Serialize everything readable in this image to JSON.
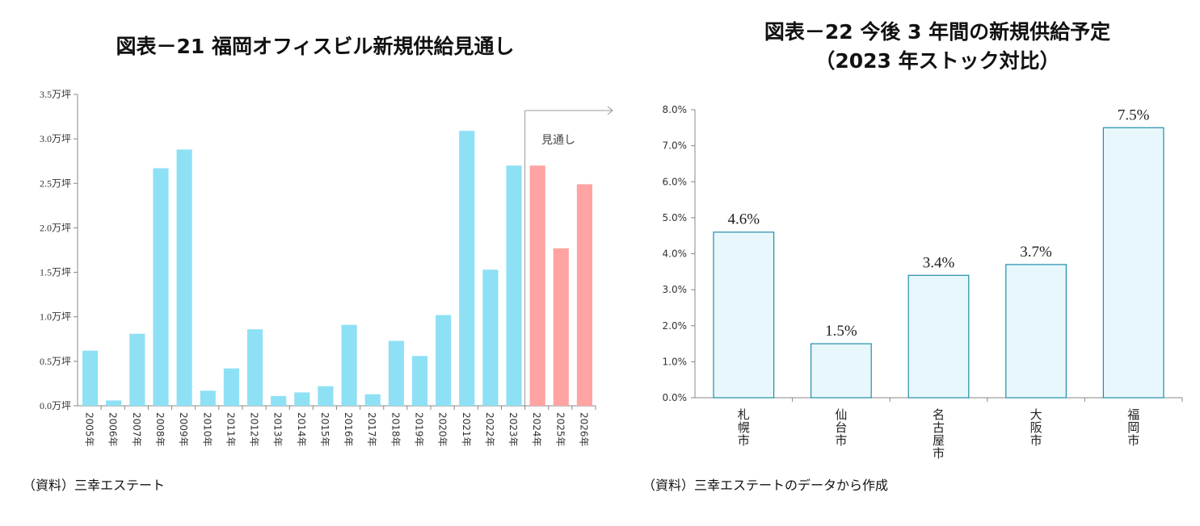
{
  "chart_data": [
    {
      "type": "bar",
      "title": "図表－21 福岡オフィスビル新規供給見通し",
      "categories": [
        "2005年",
        "2006年",
        "2007年",
        "2008年",
        "2009年",
        "2010年",
        "2011年",
        "2012年",
        "2013年",
        "2014年",
        "2015年",
        "2016年",
        "2017年",
        "2018年",
        "2019年",
        "2020年",
        "2021年",
        "2022年",
        "2023年",
        "2024年",
        "2025年",
        "2026年"
      ],
      "values": [
        0.62,
        0.06,
        0.81,
        2.67,
        2.88,
        0.17,
        0.42,
        0.86,
        0.11,
        0.15,
        0.22,
        0.91,
        0.13,
        0.73,
        0.56,
        1.02,
        3.09,
        1.53,
        2.7,
        2.7,
        1.77,
        2.49
      ],
      "forecast_from": "2024年",
      "annotation": "見通し",
      "yticks": [
        "0.0万坪",
        "0.5万坪",
        "1.0万坪",
        "1.5万坪",
        "2.0万坪",
        "2.5万坪",
        "3.0万坪",
        "3.5万坪"
      ],
      "ylim": [
        0,
        3.5
      ],
      "colors": {
        "actual": "#8ee0f5",
        "forecast": "#ffa3a3"
      },
      "source": "（資料）三幸エステート"
    },
    {
      "type": "bar",
      "title": "図表－22 今後 3 年間の新規供給予定",
      "subtitle": "（2023 年ストック対比）",
      "categories": [
        "札幌市",
        "仙台市",
        "名古屋市",
        "大阪市",
        "福岡市"
      ],
      "values": [
        4.6,
        1.5,
        3.4,
        3.7,
        7.5
      ],
      "data_labels": [
        "4.6%",
        "1.5%",
        "3.4%",
        "3.7%",
        "7.5%"
      ],
      "yticks": [
        "0.0%",
        "1.0%",
        "2.0%",
        "3.0%",
        "4.0%",
        "5.0%",
        "6.0%",
        "7.0%",
        "8.0%"
      ],
      "ylim": [
        0,
        8
      ],
      "colors": {
        "fill": "#e8f7fc",
        "stroke": "#1f8ea8"
      },
      "source": "（資料）三幸エステートのデータから作成"
    }
  ]
}
